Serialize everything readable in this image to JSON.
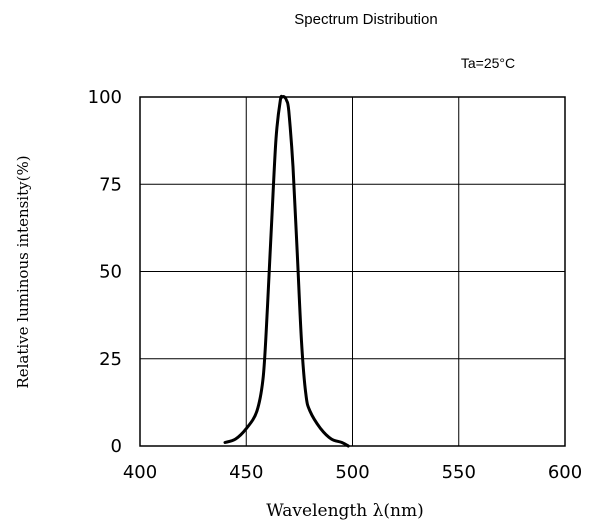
{
  "chart_data": {
    "type": "line",
    "title": "Spectrum Distribution",
    "annotation": "Ta=25°C",
    "xlabel": "Wavelength λ(nm)",
    "ylabel": "Relative luminous intensity(%)",
    "xlim": [
      400,
      600
    ],
    "ylim": [
      0,
      100
    ],
    "x_ticks": [
      "400",
      "450",
      "500",
      "550",
      "600"
    ],
    "y_ticks": [
      "0",
      "25",
      "50",
      "75",
      "100"
    ],
    "grid": true,
    "series": [
      {
        "x": [
          440,
          445,
          450,
          455,
          458,
          460,
          462,
          464,
          466,
          467,
          468,
          469,
          470,
          472,
          474,
          476,
          478,
          480,
          485,
          490,
          495,
          498
        ],
        "y": [
          1,
          2,
          5,
          10,
          20,
          40,
          65,
          88,
          99,
          100,
          100,
          99,
          96,
          80,
          55,
          30,
          15,
          10,
          5,
          2,
          1,
          0
        ]
      }
    ]
  }
}
